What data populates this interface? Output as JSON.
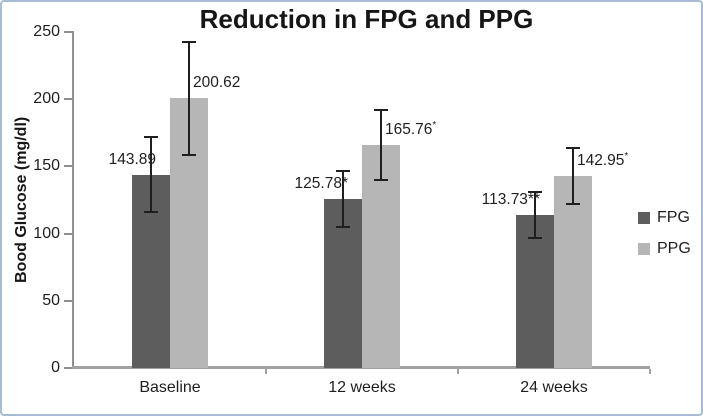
{
  "colors": {
    "frame_border": "#a8bcd4",
    "y_axis": "#8f8f8f",
    "x_axis": "#a2a2a2",
    "tick": "#8f8f8f",
    "error_bar": "#1f1f1f",
    "text": "#1f1f1f",
    "background": "#ffffff"
  },
  "chart_data": {
    "type": "bar",
    "title": "Reduction in FPG and PPG",
    "ylabel": "Bood Glucose (mg/dl)",
    "xlabel": "",
    "categories": [
      "Baseline",
      "12 weeks",
      "24 weeks"
    ],
    "ylim": [
      0,
      250
    ],
    "yticks": [
      0,
      50,
      100,
      150,
      200,
      250
    ],
    "grid": false,
    "legend_position": "right",
    "series": [
      {
        "name": "FPG",
        "color": "#5d5d5d",
        "values": [
          143.89,
          125.78,
          113.73
        ],
        "error_plus_minus": [
          28,
          21,
          17
        ],
        "data_labels": [
          {
            "text": "143.89",
            "sup": ""
          },
          {
            "text": "125.78*",
            "sup": ""
          },
          {
            "text": "113.73**",
            "sup": ""
          }
        ],
        "label_side": "left"
      },
      {
        "name": "PPG",
        "color": "#b6b6b6",
        "values": [
          200.62,
          165.76,
          142.95
        ],
        "error_plus_minus": [
          42,
          26,
          21
        ],
        "data_labels": [
          {
            "text": "200.62",
            "sup": ""
          },
          {
            "text": "165.76",
            "sup": "*"
          },
          {
            "text": "142.95",
            "sup": "*"
          }
        ],
        "label_side": "right"
      }
    ]
  }
}
